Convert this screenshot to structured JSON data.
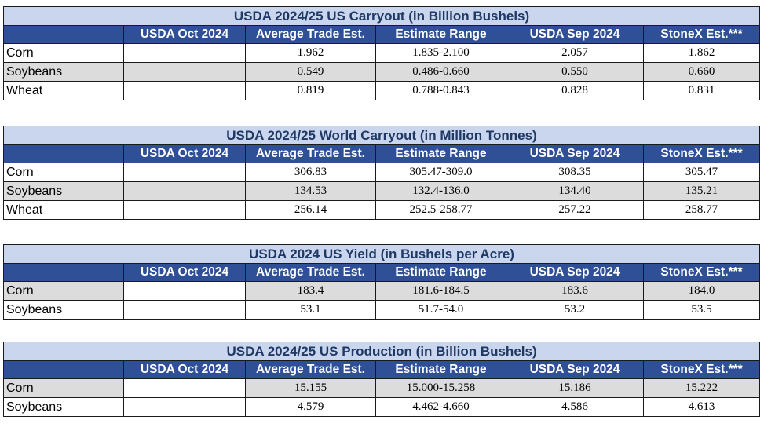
{
  "columns": [
    "USDA Oct 2024",
    "Average Trade Est.",
    "Estimate Range",
    "USDA Sep 2024",
    "StoneX Est.***"
  ],
  "tables": [
    {
      "title": "USDA 2024/25 US Carryout (in Billion Bushels)",
      "rows": [
        {
          "label": "Corn",
          "oct": "",
          "avg": "1.962",
          "range": "1.835-2.100",
          "sep": "2.057",
          "stonex": "1.862"
        },
        {
          "label": "Soybeans",
          "oct": "",
          "avg": "0.549",
          "range": "0.486-0.660",
          "sep": "0.550",
          "stonex": "0.660"
        },
        {
          "label": "Wheat",
          "oct": "",
          "avg": "0.819",
          "range": "0.788-0.843",
          "sep": "0.828",
          "stonex": "0.831"
        }
      ]
    },
    {
      "title": "USDA 2024/25 World Carryout (in Million Tonnes)",
      "rows": [
        {
          "label": "Corn",
          "oct": "",
          "avg": "306.83",
          "range": "305.47-309.0",
          "sep": "308.35",
          "stonex": "305.47"
        },
        {
          "label": "Soybeans",
          "oct": "",
          "avg": "134.53",
          "range": "132.4-136.0",
          "sep": "134.40",
          "stonex": "135.21"
        },
        {
          "label": "Wheat",
          "oct": "",
          "avg": "256.14",
          "range": "252.5-258.77",
          "sep": "257.22",
          "stonex": "258.77"
        }
      ]
    },
    {
      "title": "USDA 2024 US Yield (in Bushels per Acre)",
      "rows": [
        {
          "label": "Corn",
          "oct": "",
          "avg": "183.4",
          "range": "181.6-184.5",
          "sep": "183.6",
          "stonex": "184.0"
        },
        {
          "label": "Soybeans",
          "oct": "",
          "avg": "53.1",
          "range": "51.7-54.0",
          "sep": "53.2",
          "stonex": "53.5"
        }
      ]
    },
    {
      "title": "USDA 2024/25 US Production (in Billion Bushels)",
      "rows": [
        {
          "label": "Corn",
          "oct": "",
          "avg": "15.155",
          "range": "15.000-15.258",
          "sep": "15.186",
          "stonex": "15.222"
        },
        {
          "label": "Soybeans",
          "oct": "",
          "avg": "4.579",
          "range": "4.462-4.660",
          "sep": "4.586",
          "stonex": "4.613"
        }
      ]
    }
  ]
}
